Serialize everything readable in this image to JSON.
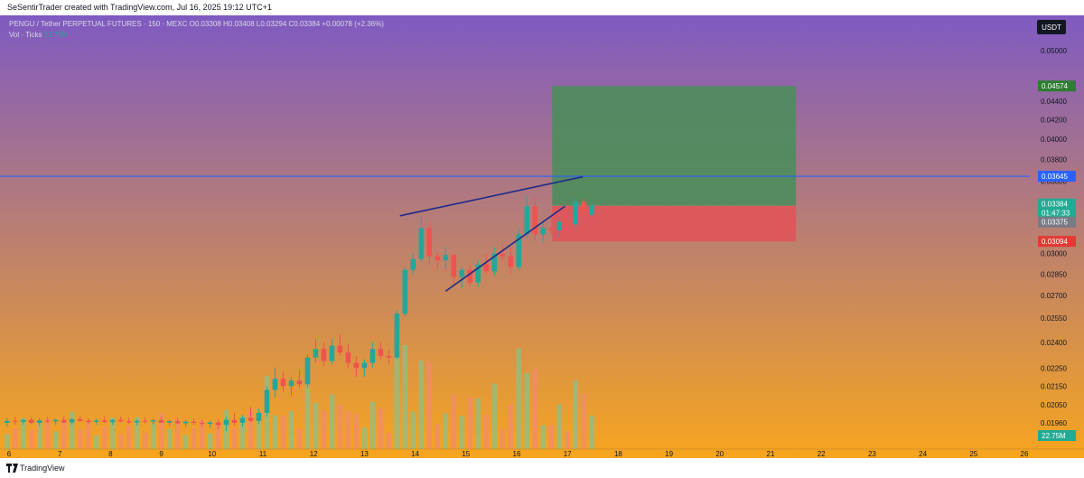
{
  "header": {
    "attribution": "SeSentirTrader created with TradingView.com, Jul 16, 2025 19:12 UTC+1"
  },
  "legend": {
    "symbol_line": "PENGU / Tether PERPETUAL FUTURES · 150 · MEXC",
    "ohlc": "O0.03308 H0.03408 L0.03294 C0.03384 +0.00078 (+2.36%)",
    "vol_label": "Vol · Ticks",
    "vol_value": "22.75M"
  },
  "price_scale": {
    "currency": "USDT",
    "labels": [
      "0.05000",
      "0.04400",
      "0.04200",
      "0.04000",
      "0.03800",
      "0.03600",
      "0.03000",
      "0.02850",
      "0.02700",
      "0.02550",
      "0.02400",
      "0.02250",
      "0.02150",
      "0.02050",
      "0.01960"
    ],
    "markers": {
      "target": "0.04574",
      "line": "0.03645",
      "last_price": "0.03384",
      "countdown": "01:47:33",
      "prev": "0.03375",
      "stop": "0.03094",
      "volume": "22.75M"
    }
  },
  "time_axis": {
    "labels": [
      "6",
      "7",
      "8",
      "9",
      "10",
      "11",
      "12",
      "13",
      "14",
      "15",
      "16",
      "17",
      "18",
      "19",
      "20",
      "21",
      "22",
      "23",
      "24",
      "25",
      "26"
    ]
  },
  "footer": {
    "brand": "TradingView"
  },
  "colors": {
    "up": "#26a69a",
    "down": "#ef5350",
    "line": "#2962ff",
    "profit_zone": "#4c8d5c",
    "loss_zone": "#e0545a",
    "wedge": "#1f2a8a",
    "bg_top": "#7f5ac2",
    "bg_bottom": "#f7a51e"
  },
  "chart_data": {
    "type": "candlestick",
    "symbol": "PENGU / Tether PERPETUAL FUTURES",
    "timeframe": "150",
    "exchange": "MEXC",
    "last": {
      "open": 0.03308,
      "high": 0.03408,
      "low": 0.03294,
      "close": 0.03384,
      "change": 0.00078,
      "change_pct": 2.36
    },
    "y_scale": "log",
    "x_axis_dates": [
      "6",
      "7",
      "8",
      "9",
      "10",
      "11",
      "12",
      "13",
      "14",
      "15",
      "16",
      "17",
      "18",
      "19",
      "20",
      "21",
      "22",
      "23",
      "24",
      "25",
      "26"
    ],
    "horizontal_line": 0.03645,
    "long_position": {
      "entry": 0.03384,
      "target": 0.04574,
      "stop": 0.03094,
      "x_start": "16.7",
      "x_end": "21.5"
    },
    "rising_wedge": {
      "upper": [
        [
          13.7,
          0.033
        ],
        [
          17.3,
          0.0364
        ]
      ],
      "lower": [
        [
          14.6,
          0.0273
        ],
        [
          16.95,
          0.0338
        ]
      ]
    },
    "candles": [
      [
        5.96,
        0.0196,
        0.01985,
        0.0194,
        0.0197
      ],
      [
        6.12,
        0.0197,
        0.0199,
        0.0195,
        0.01965
      ],
      [
        6.28,
        0.01965,
        0.0198,
        0.0195,
        0.01975
      ],
      [
        6.44,
        0.01975,
        0.0199,
        0.01955,
        0.0196
      ],
      [
        6.6,
        0.0196,
        0.01985,
        0.01945,
        0.01972
      ],
      [
        6.76,
        0.01972,
        0.0199,
        0.0196,
        0.01968
      ],
      [
        6.92,
        0.01968,
        0.0198,
        0.0195,
        0.01975
      ],
      [
        7.08,
        0.01975,
        0.01995,
        0.0196,
        0.01962
      ],
      [
        7.24,
        0.01962,
        0.01985,
        0.0195,
        0.01978
      ],
      [
        7.4,
        0.01978,
        0.01995,
        0.01965,
        0.0197
      ],
      [
        7.56,
        0.0197,
        0.01985,
        0.01955,
        0.01965
      ],
      [
        7.72,
        0.01965,
        0.0198,
        0.0195,
        0.01972
      ],
      [
        7.88,
        0.01972,
        0.0199,
        0.0196,
        0.01964
      ],
      [
        8.04,
        0.01964,
        0.0198,
        0.0195,
        0.01975
      ],
      [
        8.2,
        0.01975,
        0.0199,
        0.01962,
        0.01968
      ],
      [
        8.36,
        0.01968,
        0.01985,
        0.01955,
        0.01962
      ],
      [
        8.52,
        0.01962,
        0.01978,
        0.01948,
        0.0197
      ],
      [
        8.68,
        0.0197,
        0.01988,
        0.01958,
        0.01966
      ],
      [
        8.84,
        0.01966,
        0.0198,
        0.01952,
        0.01973
      ],
      [
        9.0,
        0.01973,
        0.0199,
        0.0196,
        0.01961
      ],
      [
        9.16,
        0.01961,
        0.01978,
        0.01945,
        0.01969
      ],
      [
        9.32,
        0.01969,
        0.01985,
        0.01955,
        0.01958
      ],
      [
        9.48,
        0.01958,
        0.01975,
        0.01942,
        0.01966
      ],
      [
        9.64,
        0.01966,
        0.01982,
        0.0195,
        0.0196
      ],
      [
        9.8,
        0.0196,
        0.01975,
        0.0194,
        0.01955
      ],
      [
        9.96,
        0.01955,
        0.01972,
        0.01935,
        0.01962
      ],
      [
        10.12,
        0.01962,
        0.01978,
        0.0193,
        0.0195
      ],
      [
        10.28,
        0.0195,
        0.0199,
        0.0192,
        0.01975
      ],
      [
        10.44,
        0.01975,
        0.0201,
        0.01945,
        0.0196
      ],
      [
        10.6,
        0.0196,
        0.02,
        0.0194,
        0.01985
      ],
      [
        10.76,
        0.01985,
        0.0204,
        0.01965,
        0.0197
      ],
      [
        10.92,
        0.0197,
        0.0203,
        0.01955,
        0.0201
      ],
      [
        11.08,
        0.0201,
        0.0215,
        0.0199,
        0.0213
      ],
      [
        11.24,
        0.0213,
        0.0225,
        0.0209,
        0.0219
      ],
      [
        11.4,
        0.0219,
        0.0223,
        0.0212,
        0.0215
      ],
      [
        11.56,
        0.0215,
        0.022,
        0.021,
        0.0218
      ],
      [
        11.72,
        0.0218,
        0.0224,
        0.0214,
        0.0216
      ],
      [
        11.88,
        0.0216,
        0.0233,
        0.0214,
        0.0231
      ],
      [
        12.04,
        0.0231,
        0.0242,
        0.0228,
        0.0236
      ],
      [
        12.2,
        0.0236,
        0.024,
        0.0226,
        0.0229
      ],
      [
        12.36,
        0.0229,
        0.0242,
        0.0227,
        0.0238
      ],
      [
        12.52,
        0.0238,
        0.0245,
        0.0232,
        0.0234
      ],
      [
        12.68,
        0.0234,
        0.0239,
        0.0225,
        0.0228
      ],
      [
        12.84,
        0.0228,
        0.0232,
        0.022,
        0.0225
      ],
      [
        13.0,
        0.0225,
        0.023,
        0.022,
        0.0228
      ],
      [
        13.16,
        0.0228,
        0.024,
        0.0225,
        0.0236
      ],
      [
        13.32,
        0.0236,
        0.024,
        0.023,
        0.0232
      ],
      [
        13.48,
        0.0232,
        0.0236,
        0.0227,
        0.0231
      ],
      [
        13.64,
        0.0231,
        0.026,
        0.023,
        0.0258
      ],
      [
        13.8,
        0.0258,
        0.029,
        0.0256,
        0.0288
      ],
      [
        13.96,
        0.0288,
        0.03,
        0.0285,
        0.0296
      ],
      [
        14.12,
        0.0296,
        0.033,
        0.0294,
        0.032
      ],
      [
        14.28,
        0.032,
        0.0325,
        0.0292,
        0.0298
      ],
      [
        14.44,
        0.0298,
        0.0302,
        0.0288,
        0.0295
      ],
      [
        14.6,
        0.0295,
        0.0305,
        0.0288,
        0.0299
      ],
      [
        14.76,
        0.0299,
        0.03,
        0.0278,
        0.0283
      ],
      [
        14.92,
        0.0283,
        0.029,
        0.0275,
        0.0288
      ],
      [
        15.08,
        0.0288,
        0.0292,
        0.0276,
        0.0279
      ],
      [
        15.24,
        0.0279,
        0.0295,
        0.0276,
        0.0292
      ],
      [
        15.4,
        0.0292,
        0.03,
        0.0285,
        0.0287
      ],
      [
        15.56,
        0.0287,
        0.0305,
        0.0284,
        0.03
      ],
      [
        15.72,
        0.03,
        0.0308,
        0.0295,
        0.0298
      ],
      [
        15.88,
        0.0298,
        0.0305,
        0.0285,
        0.029
      ],
      [
        16.04,
        0.029,
        0.032,
        0.0288,
        0.0315
      ],
      [
        16.2,
        0.0315,
        0.0348,
        0.0312,
        0.0338
      ],
      [
        16.36,
        0.0338,
        0.0346,
        0.031,
        0.0315
      ],
      [
        16.52,
        0.0315,
        0.0325,
        0.0308,
        0.032
      ],
      [
        16.68,
        0.032,
        0.033,
        0.0315,
        0.0318
      ],
      [
        16.84,
        0.0318,
        0.0328,
        0.0312,
        0.0325
      ],
      [
        17.0,
        0.0325,
        0.033,
        0.0318,
        0.0323
      ],
      [
        17.16,
        0.0323,
        0.0345,
        0.032,
        0.0342
      ],
      [
        17.32,
        0.0342,
        0.0345,
        0.0328,
        0.03308
      ],
      [
        17.48,
        0.03308,
        0.03408,
        0.03294,
        0.03384
      ]
    ]
  }
}
